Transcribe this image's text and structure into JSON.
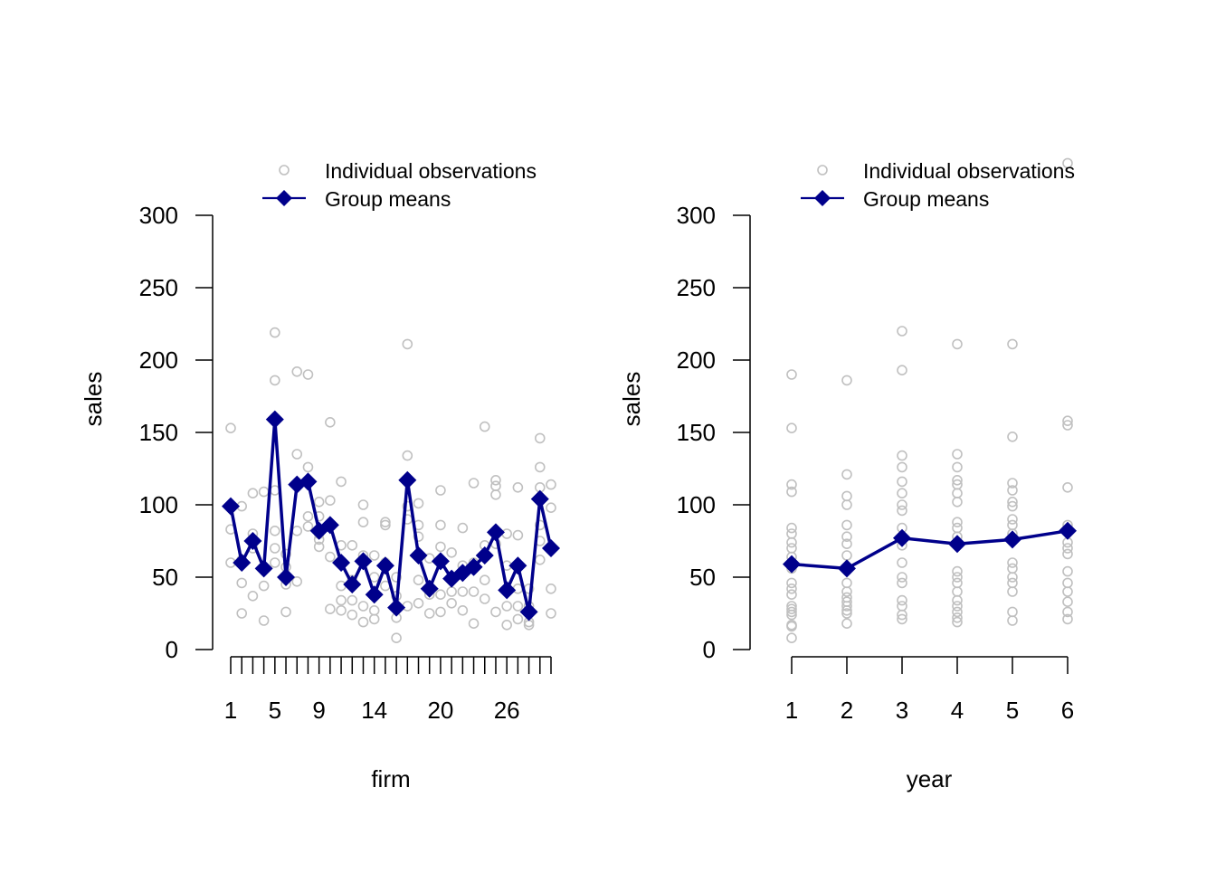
{
  "chart_data": [
    {
      "type": "scatter+line",
      "title": "",
      "xlabel": "firm",
      "ylabel": "sales",
      "ylim": [
        0,
        300
      ],
      "yticks": [
        0,
        50,
        100,
        150,
        200,
        250,
        300
      ],
      "xlim": [
        1,
        30
      ],
      "xticks_major": [
        1,
        2,
        3,
        4,
        5,
        6,
        7,
        8,
        9,
        10,
        11,
        12,
        13,
        14,
        15,
        16,
        17,
        18,
        19,
        20,
        21,
        22,
        23,
        24,
        25,
        26,
        27,
        28,
        29,
        30
      ],
      "xtick_labels": [
        {
          "x": 1,
          "label": "1"
        },
        {
          "x": 5,
          "label": "5"
        },
        {
          "x": 9,
          "label": "9"
        },
        {
          "x": 14,
          "label": "14"
        },
        {
          "x": 20,
          "label": "20"
        },
        {
          "x": 26,
          "label": "26"
        }
      ],
      "grid": false,
      "legend": {
        "placement": "top-center",
        "entries": [
          {
            "label": "Individual observations",
            "marker": "open-circle",
            "color": "#c0c0c0"
          },
          {
            "label": "Group means",
            "marker": "filled-diamond-line",
            "color": "#00008b"
          }
        ]
      },
      "series": [
        {
          "name": "Group means",
          "color": "#00008b",
          "x": [
            1,
            2,
            3,
            4,
            5,
            6,
            7,
            8,
            9,
            10,
            11,
            12,
            13,
            14,
            15,
            16,
            17,
            18,
            19,
            20,
            21,
            22,
            23,
            24,
            25,
            26,
            27,
            28,
            29,
            30
          ],
          "values": [
            99,
            60,
            75,
            56,
            159,
            50,
            114,
            116,
            82,
            86,
            60,
            45,
            61,
            38,
            58,
            29,
            117,
            65,
            42,
            61,
            49,
            53,
            57,
            65,
            81,
            41,
            58,
            26,
            104,
            70
          ]
        },
        {
          "name": "Individual observations",
          "color": "#c0c0c0",
          "points": [
            [
              1,
              153
            ],
            [
              1,
              99
            ],
            [
              1,
              83
            ],
            [
              1,
              60
            ],
            [
              2,
              99
            ],
            [
              2,
              46
            ],
            [
              2,
              25
            ],
            [
              2,
              62
            ],
            [
              3,
              108
            ],
            [
              3,
              80
            ],
            [
              3,
              70
            ],
            [
              3,
              37
            ],
            [
              3,
              74
            ],
            [
              4,
              109
            ],
            [
              4,
              56
            ],
            [
              4,
              44
            ],
            [
              4,
              20
            ],
            [
              5,
              219
            ],
            [
              5,
              186
            ],
            [
              5,
              110
            ],
            [
              5,
              82
            ],
            [
              5,
              70
            ],
            [
              5,
              60
            ],
            [
              6,
              66
            ],
            [
              6,
              57
            ],
            [
              6,
              45
            ],
            [
              6,
              26
            ],
            [
              7,
              192
            ],
            [
              7,
              135
            ],
            [
              7,
              82
            ],
            [
              7,
              47
            ],
            [
              8,
              190
            ],
            [
              8,
              126
            ],
            [
              8,
              92
            ],
            [
              8,
              85
            ],
            [
              9,
              102
            ],
            [
              9,
              92
            ],
            [
              9,
              76
            ],
            [
              9,
              71
            ],
            [
              9,
              80
            ],
            [
              10,
              157
            ],
            [
              10,
              103
            ],
            [
              10,
              64
            ],
            [
              10,
              28
            ],
            [
              11,
              116
            ],
            [
              11,
              72
            ],
            [
              11,
              44
            ],
            [
              11,
              34
            ],
            [
              11,
              27
            ],
            [
              12,
              72
            ],
            [
              12,
              48
            ],
            [
              12,
              34
            ],
            [
              12,
              24
            ],
            [
              13,
              100
            ],
            [
              13,
              88
            ],
            [
              13,
              65
            ],
            [
              13,
              30
            ],
            [
              13,
              19
            ],
            [
              14,
              65
            ],
            [
              14,
              50
            ],
            [
              14,
              27
            ],
            [
              14,
              21
            ],
            [
              15,
              88
            ],
            [
              15,
              86
            ],
            [
              15,
              60
            ],
            [
              15,
              44
            ],
            [
              16,
              50
            ],
            [
              16,
              37
            ],
            [
              16,
              22
            ],
            [
              16,
              8
            ],
            [
              16,
              29
            ],
            [
              17,
              211
            ],
            [
              17,
              134
            ],
            [
              17,
              99
            ],
            [
              17,
              90
            ],
            [
              17,
              30
            ],
            [
              18,
              101
            ],
            [
              18,
              86
            ],
            [
              18,
              78
            ],
            [
              18,
              48
            ],
            [
              18,
              32
            ],
            [
              19,
              63
            ],
            [
              19,
              38
            ],
            [
              19,
              25
            ],
            [
              20,
              110
            ],
            [
              20,
              86
            ],
            [
              20,
              71
            ],
            [
              20,
              38
            ],
            [
              20,
              26
            ],
            [
              21,
              67
            ],
            [
              21,
              48
            ],
            [
              21,
              40
            ],
            [
              21,
              32
            ],
            [
              22,
              84
            ],
            [
              22,
              58
            ],
            [
              22,
              40
            ],
            [
              22,
              27
            ],
            [
              23,
              115
            ],
            [
              23,
              60
            ],
            [
              23,
              40
            ],
            [
              23,
              18
            ],
            [
              24,
              154
            ],
            [
              24,
              72
            ],
            [
              24,
              48
            ],
            [
              24,
              35
            ],
            [
              25,
              117
            ],
            [
              25,
              113
            ],
            [
              25,
              107
            ],
            [
              25,
              73
            ],
            [
              25,
              26
            ],
            [
              26,
              80
            ],
            [
              26,
              58
            ],
            [
              26,
              30
            ],
            [
              26,
              17
            ],
            [
              27,
              112
            ],
            [
              27,
              79
            ],
            [
              27,
              42
            ],
            [
              27,
              30
            ],
            [
              27,
              21
            ],
            [
              28,
              42
            ],
            [
              28,
              30
            ],
            [
              28,
              19
            ],
            [
              28,
              17
            ],
            [
              29,
              146
            ],
            [
              29,
              126
            ],
            [
              29,
              112
            ],
            [
              29,
              86
            ],
            [
              29,
              62
            ],
            [
              29,
              75
            ],
            [
              30,
              114
            ],
            [
              30,
              98
            ],
            [
              30,
              42
            ],
            [
              30,
              25
            ]
          ]
        }
      ]
    },
    {
      "type": "scatter+line",
      "title": "",
      "xlabel": "year",
      "ylabel": "sales",
      "ylim": [
        0,
        300
      ],
      "yticks": [
        0,
        50,
        100,
        150,
        200,
        250,
        300
      ],
      "xlim": [
        1,
        6
      ],
      "xticks_major": [
        1,
        2,
        3,
        4,
        5,
        6
      ],
      "xtick_labels": [
        {
          "x": 1,
          "label": "1"
        },
        {
          "x": 2,
          "label": "2"
        },
        {
          "x": 3,
          "label": "3"
        },
        {
          "x": 4,
          "label": "4"
        },
        {
          "x": 5,
          "label": "5"
        },
        {
          "x": 6,
          "label": "6"
        }
      ],
      "grid": false,
      "legend": {
        "placement": "top-center",
        "entries": [
          {
            "label": "Individual observations",
            "marker": "open-circle",
            "color": "#c0c0c0"
          },
          {
            "label": "Group means",
            "marker": "filled-diamond-line",
            "color": "#00008b"
          }
        ]
      },
      "series": [
        {
          "name": "Group means",
          "color": "#00008b",
          "x": [
            1,
            2,
            3,
            4,
            5,
            6
          ],
          "values": [
            59,
            56,
            77,
            73,
            76,
            82
          ]
        },
        {
          "name": "Individual observations",
          "color": "#c0c0c0",
          "points": [
            [
              1,
              190
            ],
            [
              1,
              153
            ],
            [
              1,
              114
            ],
            [
              1,
              109
            ],
            [
              1,
              84
            ],
            [
              1,
              80
            ],
            [
              1,
              74
            ],
            [
              1,
              70
            ],
            [
              1,
              64
            ],
            [
              1,
              60
            ],
            [
              1,
              56
            ],
            [
              1,
              46
            ],
            [
              1,
              42
            ],
            [
              1,
              38
            ],
            [
              1,
              30
            ],
            [
              1,
              28
            ],
            [
              1,
              26
            ],
            [
              1,
              24
            ],
            [
              1,
              17
            ],
            [
              1,
              16
            ],
            [
              1,
              8
            ],
            [
              2,
              186
            ],
            [
              2,
              121
            ],
            [
              2,
              106
            ],
            [
              2,
              100
            ],
            [
              2,
              86
            ],
            [
              2,
              78
            ],
            [
              2,
              73
            ],
            [
              2,
              65
            ],
            [
              2,
              56
            ],
            [
              2,
              46
            ],
            [
              2,
              40
            ],
            [
              2,
              36
            ],
            [
              2,
              33
            ],
            [
              2,
              30
            ],
            [
              2,
              27
            ],
            [
              2,
              25
            ],
            [
              2,
              18
            ],
            [
              3,
              220
            ],
            [
              3,
              193
            ],
            [
              3,
              134
            ],
            [
              3,
              126
            ],
            [
              3,
              116
            ],
            [
              3,
              108
            ],
            [
              3,
              100
            ],
            [
              3,
              96
            ],
            [
              3,
              84
            ],
            [
              3,
              78
            ],
            [
              3,
              72
            ],
            [
              3,
              60
            ],
            [
              3,
              50
            ],
            [
              3,
              46
            ],
            [
              3,
              34
            ],
            [
              3,
              30
            ],
            [
              3,
              24
            ],
            [
              3,
              21
            ],
            [
              4,
              211
            ],
            [
              4,
              135
            ],
            [
              4,
              126
            ],
            [
              4,
              117
            ],
            [
              4,
              114
            ],
            [
              4,
              108
            ],
            [
              4,
              102
            ],
            [
              4,
              88
            ],
            [
              4,
              84
            ],
            [
              4,
              78
            ],
            [
              4,
              54
            ],
            [
              4,
              50
            ],
            [
              4,
              46
            ],
            [
              4,
              40
            ],
            [
              4,
              34
            ],
            [
              4,
              30
            ],
            [
              4,
              26
            ],
            [
              4,
              22
            ],
            [
              4,
              19
            ],
            [
              5,
              211
            ],
            [
              5,
              147
            ],
            [
              5,
              115
            ],
            [
              5,
              110
            ],
            [
              5,
              102
            ],
            [
              5,
              99
            ],
            [
              5,
              90
            ],
            [
              5,
              86
            ],
            [
              5,
              80
            ],
            [
              5,
              60
            ],
            [
              5,
              56
            ],
            [
              5,
              50
            ],
            [
              5,
              46
            ],
            [
              5,
              40
            ],
            [
              5,
              26
            ],
            [
              5,
              20
            ],
            [
              6,
              336
            ],
            [
              6,
              158
            ],
            [
              6,
              155
            ],
            [
              6,
              112
            ],
            [
              6,
              86
            ],
            [
              6,
              74
            ],
            [
              6,
              70
            ],
            [
              6,
              66
            ],
            [
              6,
              54
            ],
            [
              6,
              46
            ],
            [
              6,
              40
            ],
            [
              6,
              33
            ],
            [
              6,
              26
            ],
            [
              6,
              21
            ]
          ]
        }
      ]
    }
  ]
}
